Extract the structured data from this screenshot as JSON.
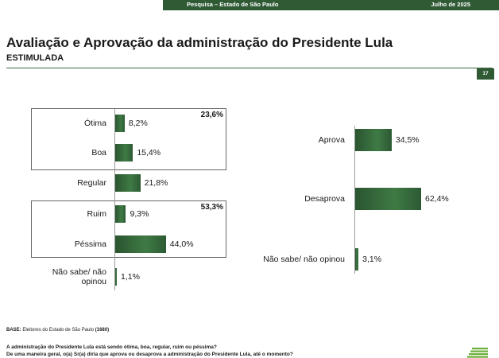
{
  "header": {
    "source": "Pesquisa – Estado de São Paulo",
    "date": "Julho de 2025",
    "page_number": "17"
  },
  "title": "Avaliação e Aprovação da administração do Presidente Lula",
  "subtitle": "ESTIMULADA",
  "colors": {
    "bar": "#3f7a45",
    "header": "#2f5a34"
  },
  "chart_data": [
    {
      "type": "bar",
      "orientation": "horizontal",
      "categories": [
        "Ótima",
        "Boa",
        "Regular",
        "Ruim",
        "Péssima",
        "Não sabe/ não opinou"
      ],
      "values": [
        8.2,
        15.4,
        21.8,
        9.3,
        44.0,
        1.1
      ],
      "value_labels": [
        "8,2%",
        "15,4%",
        "21,8%",
        "9,3%",
        "44,0%",
        "1,1%"
      ],
      "groups": [
        {
          "total_label": "23,6%",
          "categories": [
            "Ótima",
            "Boa"
          ]
        },
        {
          "total_label": "53,3%",
          "categories": [
            "Ruim",
            "Péssima"
          ]
        }
      ],
      "xlim": [
        0,
        100
      ]
    },
    {
      "type": "bar",
      "orientation": "horizontal",
      "categories": [
        "Aprova",
        "Desaprova",
        "Não sabe/ não opinou"
      ],
      "values": [
        34.5,
        62.4,
        3.1
      ],
      "value_labels": [
        "34,5%",
        "62,4%",
        "3,1%"
      ],
      "xlim": [
        0,
        100
      ]
    }
  ],
  "footer": {
    "base_label": "BASE:",
    "base_text": "Eleitores do Estado de São Paulo",
    "base_n": "(1680)",
    "question_1": "A administração do Presidente Lula está sendo ótima, boa, regular, ruim ou péssima?",
    "question_2": "De uma maneira geral, o(a) Sr(a) diria que aprova ou desaprova a administração do Presidente Lula, até o momento?"
  }
}
